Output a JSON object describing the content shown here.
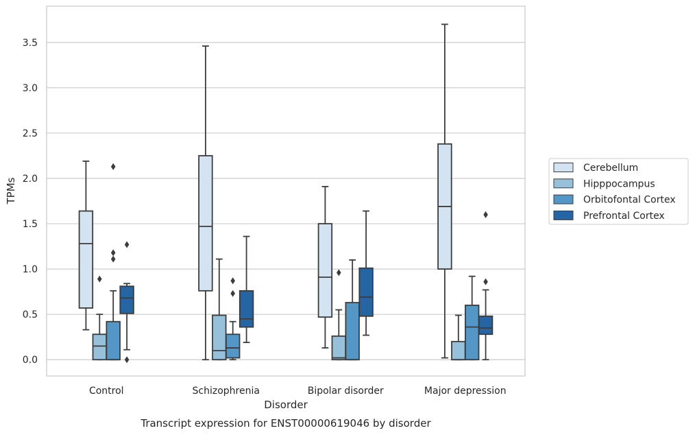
{
  "chart_data": {
    "type": "box",
    "xlabel": "Disorder",
    "ylabel": "TPMs",
    "caption": "Transcript expression for ENST00000619046 by disorder",
    "ylim": [
      -0.18,
      3.9
    ],
    "yticks": [
      "0.0",
      "0.5",
      "1.0",
      "1.5",
      "2.0",
      "2.5",
      "3.0",
      "3.5"
    ],
    "grid": "horizontal",
    "legend_position": "right",
    "categories": [
      "Control",
      "Schizophrenia",
      "Bipolar disorder",
      "Major depression"
    ],
    "series": [
      {
        "name": "Cerebellum",
        "color": "#d4e3f2",
        "boxes": [
          {
            "whislo": 0.33,
            "q1": 0.57,
            "med": 1.28,
            "q3": 1.64,
            "whishi": 2.19,
            "fliers": []
          },
          {
            "whislo": 0.0,
            "q1": 0.76,
            "med": 1.47,
            "q3": 2.25,
            "whishi": 3.46,
            "fliers": []
          },
          {
            "whislo": 0.13,
            "q1": 0.47,
            "med": 0.91,
            "q3": 1.5,
            "whishi": 1.91,
            "fliers": []
          },
          {
            "whislo": 0.02,
            "q1": 1.0,
            "med": 1.69,
            "q3": 2.38,
            "whishi": 3.7,
            "fliers": []
          }
        ]
      },
      {
        "name": "Hipppocampus",
        "color": "#97c0db",
        "boxes": [
          {
            "whislo": 0.0,
            "q1": 0.0,
            "med": 0.15,
            "q3": 0.28,
            "whishi": 0.5,
            "fliers": [
              0.89
            ]
          },
          {
            "whislo": 0.0,
            "q1": 0.0,
            "med": 0.1,
            "q3": 0.49,
            "whishi": 1.11,
            "fliers": []
          },
          {
            "whislo": 0.0,
            "q1": 0.0,
            "med": 0.02,
            "q3": 0.26,
            "whishi": 0.55,
            "fliers": [
              0.96
            ]
          },
          {
            "whislo": 0.0,
            "q1": 0.0,
            "med": 0.0,
            "q3": 0.2,
            "whishi": 0.49,
            "fliers": []
          }
        ]
      },
      {
        "name": "Orbitofontal Cortex",
        "color": "#5497c6",
        "boxes": [
          {
            "whislo": 0.0,
            "q1": 0.0,
            "med": 0.0,
            "q3": 0.42,
            "whishi": 0.76,
            "fliers": [
              1.11,
              1.18,
              2.13
            ]
          },
          {
            "whislo": 0.0,
            "q1": 0.02,
            "med": 0.13,
            "q3": 0.28,
            "whishi": 0.42,
            "fliers": [
              0.73,
              0.87
            ]
          },
          {
            "whislo": 0.0,
            "q1": 0.0,
            "med": 0.0,
            "q3": 0.63,
            "whishi": 1.1,
            "fliers": []
          },
          {
            "whislo": 0.0,
            "q1": 0.0,
            "med": 0.36,
            "q3": 0.6,
            "whishi": 0.92,
            "fliers": []
          }
        ]
      },
      {
        "name": "Prefrontal Cortex",
        "color": "#2565a4",
        "boxes": [
          {
            "whislo": 0.11,
            "q1": 0.51,
            "med": 0.68,
            "q3": 0.81,
            "whishi": 0.84,
            "fliers": [
              0.0,
              1.27
            ]
          },
          {
            "whislo": 0.19,
            "q1": 0.36,
            "med": 0.45,
            "q3": 0.76,
            "whishi": 1.36,
            "fliers": []
          },
          {
            "whislo": 0.27,
            "q1": 0.48,
            "med": 0.69,
            "q3": 1.01,
            "whishi": 1.64,
            "fliers": []
          },
          {
            "whislo": 0.0,
            "q1": 0.28,
            "med": 0.35,
            "q3": 0.48,
            "whishi": 0.77,
            "fliers": [
              0.86,
              1.6
            ]
          }
        ]
      }
    ]
  }
}
